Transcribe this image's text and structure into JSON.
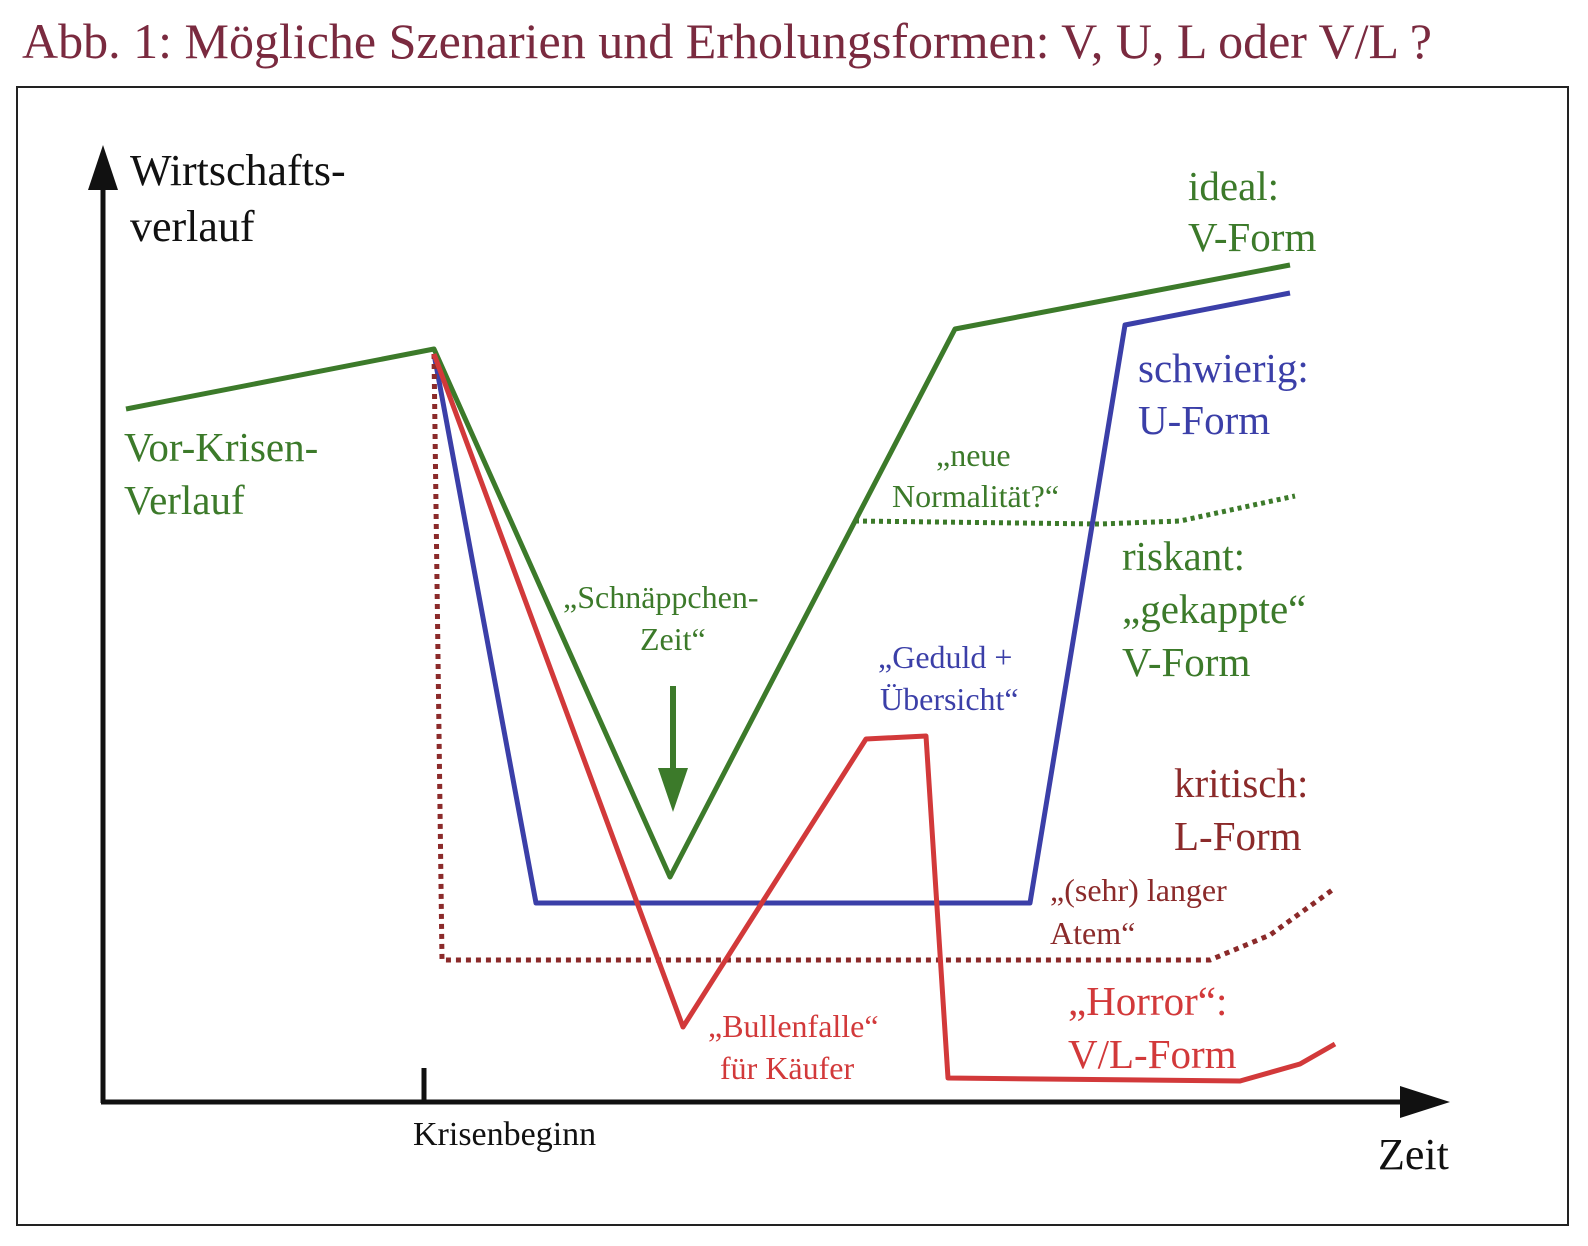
{
  "title": "Abb. 1: Mögliche Szenarien und Erholungsformen: V, U, L oder V/L ?",
  "axes": {
    "y_label_line1": "Wirtschafts-",
    "y_label_line2": "verlauf",
    "x_label": "Zeit",
    "x_tick_label": "Krisenbeginn"
  },
  "colors": {
    "green": "#3c7a2a",
    "blue": "#3b3fa8",
    "red": "#d2393a",
    "darkred": "#8b2a2a",
    "axis": "#111111",
    "title": "#7a2a3f"
  },
  "labels": {
    "pre_crisis_1": "Vor-Krisen-",
    "pre_crisis_2": "Verlauf",
    "ideal_1": "ideal:",
    "ideal_2": "V-Form",
    "difficult_1": "schwierig:",
    "difficult_2": "U-Form",
    "new_normal_1": "„neue",
    "new_normal_2": "Normalität?“",
    "risky_1": "riskant:",
    "risky_2": "„gekappte“",
    "risky_3": "V-Form",
    "bargain_1": "„Schnäppchen-",
    "bargain_2": "Zeit“",
    "patience_1": "„Geduld +",
    "patience_2": "Übersicht“",
    "critical_1": "kritisch:",
    "critical_2": "L-Form",
    "long_breath_1": "„(sehr) langer",
    "long_breath_2": "Atem“",
    "horror_1": "„Horror“:",
    "horror_2": "V/L-Form",
    "bulltrap_1": "„Bullenfalle“",
    "bulltrap_2": "für Käufer"
  }
}
